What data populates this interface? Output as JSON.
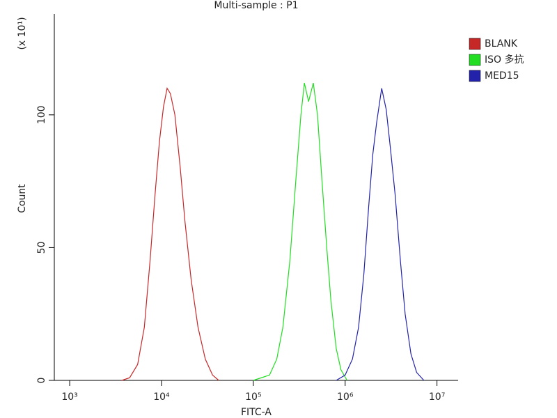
{
  "chart_data": {
    "type": "line",
    "title": "Multi-sample : P1",
    "x_label": "FITC-A",
    "y_label": "Count",
    "y_multiplier": "(x 10¹)",
    "log_x": true,
    "legend": "right",
    "xlim": [
      680,
      17000000
    ],
    "xticks": [
      {
        "value": 1000,
        "label": "10³"
      },
      {
        "value": 10000,
        "label": "10⁴"
      },
      {
        "value": 100000,
        "label": "10⁵"
      },
      {
        "value": 1000000,
        "label": "10⁶"
      },
      {
        "value": 10000000,
        "label": "10⁷"
      }
    ],
    "ylim": [
      0,
      138
    ],
    "yticks": [
      0,
      50,
      100
    ],
    "series": [
      {
        "name": "BLANK",
        "color": "#c62828",
        "x": [
          3700,
          4500,
          5500,
          6500,
          7500,
          8500,
          9500,
          10500,
          11500,
          12500,
          14000,
          16000,
          18000,
          21000,
          25000,
          30000,
          36000,
          42000
        ],
        "values": [
          0,
          1,
          6,
          20,
          45,
          70,
          90,
          103,
          110,
          108,
          100,
          80,
          60,
          38,
          20,
          8,
          2,
          0
        ]
      },
      {
        "name": "ISO 多抗",
        "color": "#22dd22",
        "x": [
          100000,
          150000,
          180000,
          210000,
          250000,
          290000,
          330000,
          360000,
          400000,
          450000,
          500000,
          560000,
          630000,
          700000,
          800000,
          900000,
          1050000
        ],
        "values": [
          0,
          2,
          8,
          20,
          45,
          75,
          100,
          112,
          105,
          112,
          100,
          75,
          50,
          30,
          12,
          4,
          0
        ]
      },
      {
        "name": "MED15",
        "color": "#2222aa",
        "x": [
          800000,
          1000000,
          1200000,
          1400000,
          1600000,
          1800000,
          2000000,
          2200000,
          2500000,
          2800000,
          3100000,
          3500000,
          4000000,
          4500000,
          5200000,
          6000000,
          7200000
        ],
        "values": [
          0,
          2,
          8,
          20,
          40,
          65,
          85,
          97,
          110,
          102,
          88,
          70,
          45,
          25,
          10,
          3,
          0
        ]
      }
    ]
  }
}
